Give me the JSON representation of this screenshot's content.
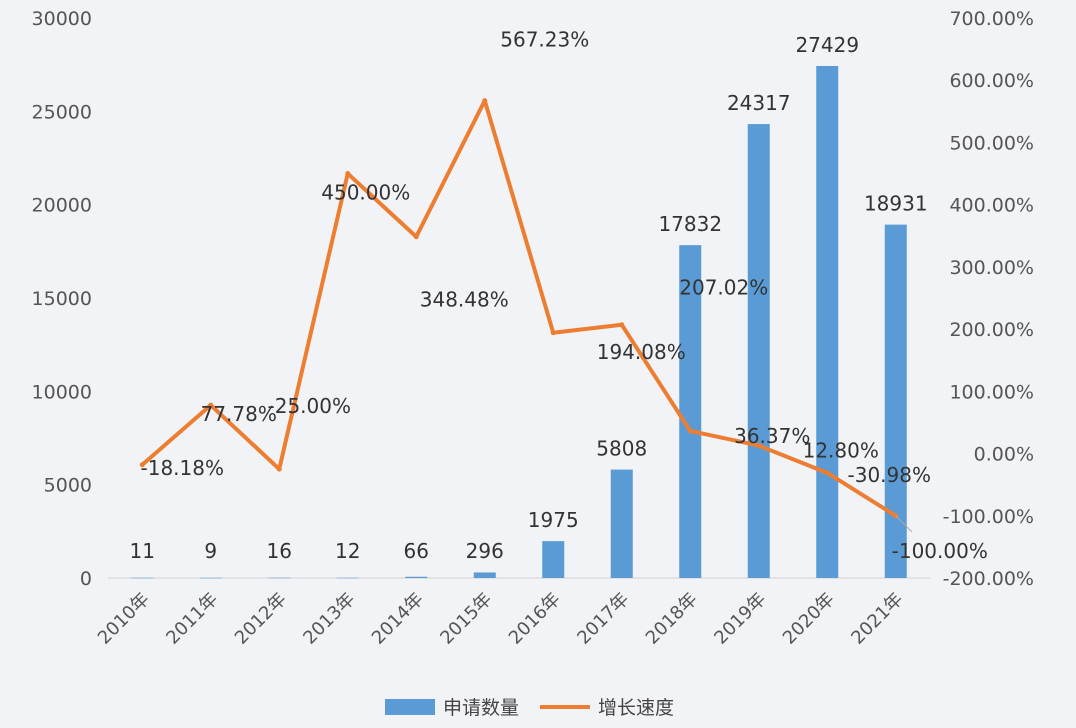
{
  "chart_data": {
    "type": "bar",
    "categories": [
      "2010年",
      "2011年",
      "2012年",
      "2013年",
      "2014年",
      "2015年",
      "2016年",
      "2017年",
      "2018年",
      "2019年",
      "2020年",
      "2021年"
    ],
    "series": [
      {
        "name": "申请数量",
        "type": "bar",
        "axis": "left",
        "color": "#5b9bd5",
        "values": [
          11,
          9,
          16,
          12,
          66,
          296,
          1975,
          5808,
          17832,
          24317,
          27429,
          18931
        ],
        "labels": [
          "11",
          "9",
          "16",
          "12",
          "66",
          "296",
          "1975",
          "5808",
          "17832",
          "24317",
          "27429",
          "18931"
        ]
      },
      {
        "name": "增长速度",
        "type": "line",
        "axis": "right",
        "color": "#ed7d31",
        "values": [
          -0.18,
          0.7778,
          -0.25,
          4.5,
          3.4848,
          5.6723,
          1.9408,
          2.0702,
          0.3637,
          0.128,
          -0.3098,
          -1.0
        ],
        "labels": [
          "-18.18%",
          "77.78%",
          "-25.00%",
          "450.00%",
          "348.48%",
          "567.23%",
          "194.08%",
          "207.02%",
          "36.37%",
          "12.80%",
          "-30.98%",
          "-100.00%"
        ]
      }
    ],
    "y_left": {
      "min": 0,
      "max": 30000,
      "ticks": [
        0,
        5000,
        10000,
        15000,
        20000,
        25000,
        30000
      ],
      "tick_labels": [
        "0",
        "5000",
        "10000",
        "15000",
        "20000",
        "25000",
        "30000"
      ]
    },
    "y_right": {
      "min": -2.0,
      "max": 7.0,
      "ticks": [
        -2,
        -1,
        0,
        1,
        2,
        3,
        4,
        5,
        6,
        7
      ],
      "tick_labels": [
        "-200.00%",
        "-100.00%",
        "0.00%",
        "100.00%",
        "200.00%",
        "300.00%",
        "400.00%",
        "500.00%",
        "600.00%",
        "700.00%"
      ]
    },
    "grid": false,
    "legend": "bottom",
    "legend_entries": [
      "申请数量",
      "增长速度"
    ]
  }
}
